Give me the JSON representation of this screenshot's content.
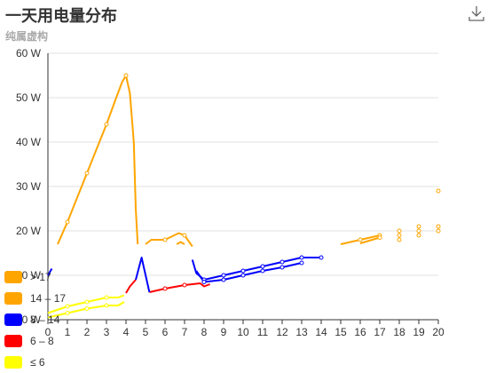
{
  "title": "一天用电量分布",
  "subtitle": "纯属虚构",
  "toolbar": {
    "download_icon": "download-icon"
  },
  "colors": {
    "gt17": "#ffa500",
    "r14_17": "#ffa500",
    "r8_14": "#0000ff",
    "r6_8": "#ff0000",
    "le6": "#ffff00",
    "axis": "#333333",
    "grid": "#e0e0e0",
    "text": "#333333"
  },
  "legend": {
    "items": [
      {
        "label": "> 17",
        "color": "#ffa500"
      },
      {
        "label": "14 – 17",
        "color": "#ffa500"
      },
      {
        "label": "8 – 14",
        "color": "#0000ff"
      },
      {
        "label": "6 – 8",
        "color": "#ff0000"
      },
      {
        "label": "≤ 6",
        "color": "#ffff00"
      }
    ]
  },
  "chart_data": {
    "type": "line",
    "title": "一天用电量分布",
    "subtitle": "纯属虚构",
    "xlabel": "",
    "ylabel": "",
    "x_ticks": [
      "0",
      "1",
      "2",
      "3",
      "4",
      "5",
      "6",
      "7",
      "8",
      "9",
      "10",
      "11",
      "12",
      "13",
      "14",
      "15",
      "16",
      "17",
      "18",
      "19",
      "20"
    ],
    "y_ticks": [
      "0 W",
      "10 W",
      "20 W",
      "30 W",
      "40 W",
      "50 W",
      "60 W"
    ],
    "xlim": [
      0,
      20
    ],
    "ylim": [
      0,
      60
    ],
    "grid": true,
    "legend_position": "left",
    "series": [
      {
        "color": "#ffff00",
        "points": [
          [
            0,
            1.5
          ],
          [
            1,
            3
          ],
          [
            2,
            4
          ],
          [
            3,
            5
          ],
          [
            3.6,
            5
          ],
          [
            3.9,
            5.5
          ]
        ],
        "markers": [
          [
            1,
            3
          ],
          [
            2,
            4
          ],
          [
            3,
            5
          ]
        ]
      },
      {
        "color": "#ffff00",
        "points": [
          [
            0,
            0.5
          ],
          [
            1,
            1.5
          ],
          [
            2,
            2.5
          ],
          [
            3,
            3.2
          ],
          [
            3.6,
            3.2
          ],
          [
            3.9,
            4
          ]
        ],
        "markers": [
          [
            1,
            1.5
          ],
          [
            2,
            2.5
          ],
          [
            3,
            3.2
          ]
        ]
      },
      {
        "color": "#ff0000",
        "points": [
          [
            4,
            6
          ],
          [
            4.2,
            7.5
          ],
          [
            4.5,
            9
          ]
        ],
        "markers": []
      },
      {
        "color": "#ff0000",
        "points": [
          [
            5.2,
            6.2
          ],
          [
            6,
            7
          ],
          [
            7,
            7.8
          ],
          [
            7.8,
            8.2
          ],
          [
            8,
            7.5
          ],
          [
            8.3,
            8
          ]
        ],
        "markers": [
          [
            6,
            7
          ],
          [
            7,
            7.8
          ]
        ]
      },
      {
        "color": "#0000ff",
        "points": [
          [
            4.5,
            9
          ],
          [
            4.8,
            14
          ],
          [
            5.2,
            6.2
          ]
        ],
        "markers": []
      },
      {
        "color": "#0000ff",
        "points": [
          [
            7.4,
            13.5
          ],
          [
            7.6,
            10.5
          ],
          [
            8,
            9
          ],
          [
            9,
            10
          ],
          [
            10,
            11
          ],
          [
            11,
            12
          ],
          [
            12,
            13
          ],
          [
            13,
            14
          ],
          [
            14,
            14
          ]
        ],
        "markers": [
          [
            8,
            9
          ],
          [
            9,
            10
          ],
          [
            10,
            11
          ],
          [
            11,
            12
          ],
          [
            12,
            13
          ],
          [
            13,
            14
          ],
          [
            14,
            14
          ]
        ]
      },
      {
        "color": "#0000ff",
        "points": [
          [
            7.6,
            11
          ],
          [
            8,
            8.5
          ],
          [
            9,
            9
          ],
          [
            10,
            10
          ],
          [
            11,
            11
          ],
          [
            12,
            11.8
          ],
          [
            13,
            12.8
          ]
        ],
        "markers": [
          [
            8,
            8.5
          ],
          [
            9,
            9
          ],
          [
            10,
            10
          ],
          [
            11,
            11
          ],
          [
            12,
            11.8
          ],
          [
            13,
            12.8
          ]
        ]
      },
      {
        "color": "#0000ff",
        "points": [
          [
            0,
            10
          ],
          [
            0.2,
            11.5
          ]
        ],
        "markers": []
      },
      {
        "color": "#ffa500",
        "points": [
          [
            0.5,
            17
          ],
          [
            1,
            22
          ],
          [
            2,
            33
          ],
          [
            3,
            44
          ],
          [
            3.5,
            50
          ],
          [
            3.8,
            53.5
          ],
          [
            4,
            55
          ],
          [
            4.2,
            51
          ],
          [
            4.4,
            40
          ],
          [
            4.5,
            25
          ],
          [
            4.6,
            17
          ]
        ],
        "markers": [
          [
            1,
            22
          ],
          [
            2,
            33
          ],
          [
            3,
            44
          ],
          [
            4,
            55
          ]
        ]
      },
      {
        "color": "#ffa500",
        "points": [
          [
            5,
            17
          ],
          [
            5.3,
            18
          ],
          [
            6,
            18
          ],
          [
            6.7,
            19.5
          ],
          [
            7,
            19
          ],
          [
            7.4,
            16.5
          ]
        ],
        "markers": [
          [
            6,
            18
          ],
          [
            7,
            19
          ]
        ]
      },
      {
        "color": "#ffa500",
        "points": [
          [
            6.6,
            17
          ],
          [
            6.8,
            17.5
          ],
          [
            7,
            17
          ]
        ],
        "markers": []
      },
      {
        "color": "#ffa500",
        "points": [
          [
            15,
            17
          ],
          [
            16,
            18
          ],
          [
            17,
            19
          ]
        ],
        "markers": [
          [
            16,
            18
          ],
          [
            17,
            19
          ]
        ]
      },
      {
        "color": "#ffa500",
        "points": [
          [
            16,
            17.2
          ],
          [
            17,
            18.5
          ]
        ],
        "markers": [
          [
            17,
            18.5
          ]
        ]
      },
      {
        "color": "#ffa500",
        "points": [],
        "markers": [
          [
            18,
            18
          ],
          [
            18,
            19
          ],
          [
            18,
            20
          ],
          [
            19,
            19
          ],
          [
            19,
            20
          ],
          [
            19,
            21
          ],
          [
            20,
            20
          ],
          [
            20,
            21
          ],
          [
            20,
            29
          ]
        ]
      }
    ]
  }
}
